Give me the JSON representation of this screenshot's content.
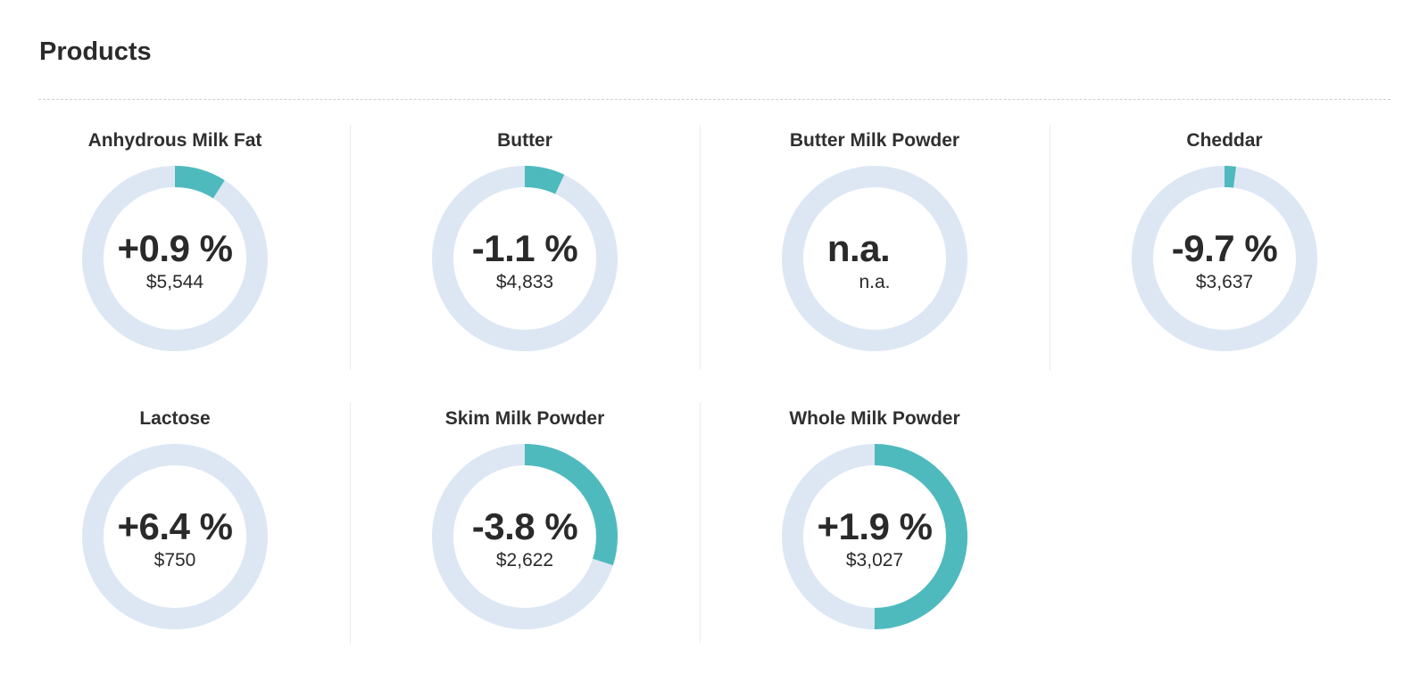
{
  "header": {
    "title": "Products"
  },
  "colors": {
    "ring_track": "#dde7f4",
    "ring_fill": "#4fbabd",
    "text": "#2a2a2a"
  },
  "products": [
    {
      "name": "Anhydrous Milk Fat",
      "change": "+0.9 %",
      "price": "$5,544",
      "ring_fraction": 0.09
    },
    {
      "name": "Butter",
      "change": "-1.1 %",
      "price": "$4,833",
      "ring_fraction": 0.07
    },
    {
      "name": "Butter Milk Powder",
      "change": "n.a.",
      "price": "n.a.",
      "ring_fraction": 0
    },
    {
      "name": "Cheddar",
      "change": "-9.7 %",
      "price": "$3,637",
      "ring_fraction": 0.02
    },
    {
      "name": "Lactose",
      "change": "+6.4 %",
      "price": "$750",
      "ring_fraction": 0
    },
    {
      "name": "Skim Milk Powder",
      "change": "-3.8 %",
      "price": "$2,622",
      "ring_fraction": 0.3
    },
    {
      "name": "Whole Milk Powder",
      "change": "+1.9 %",
      "price": "$3,027",
      "ring_fraction": 0.5
    }
  ]
}
